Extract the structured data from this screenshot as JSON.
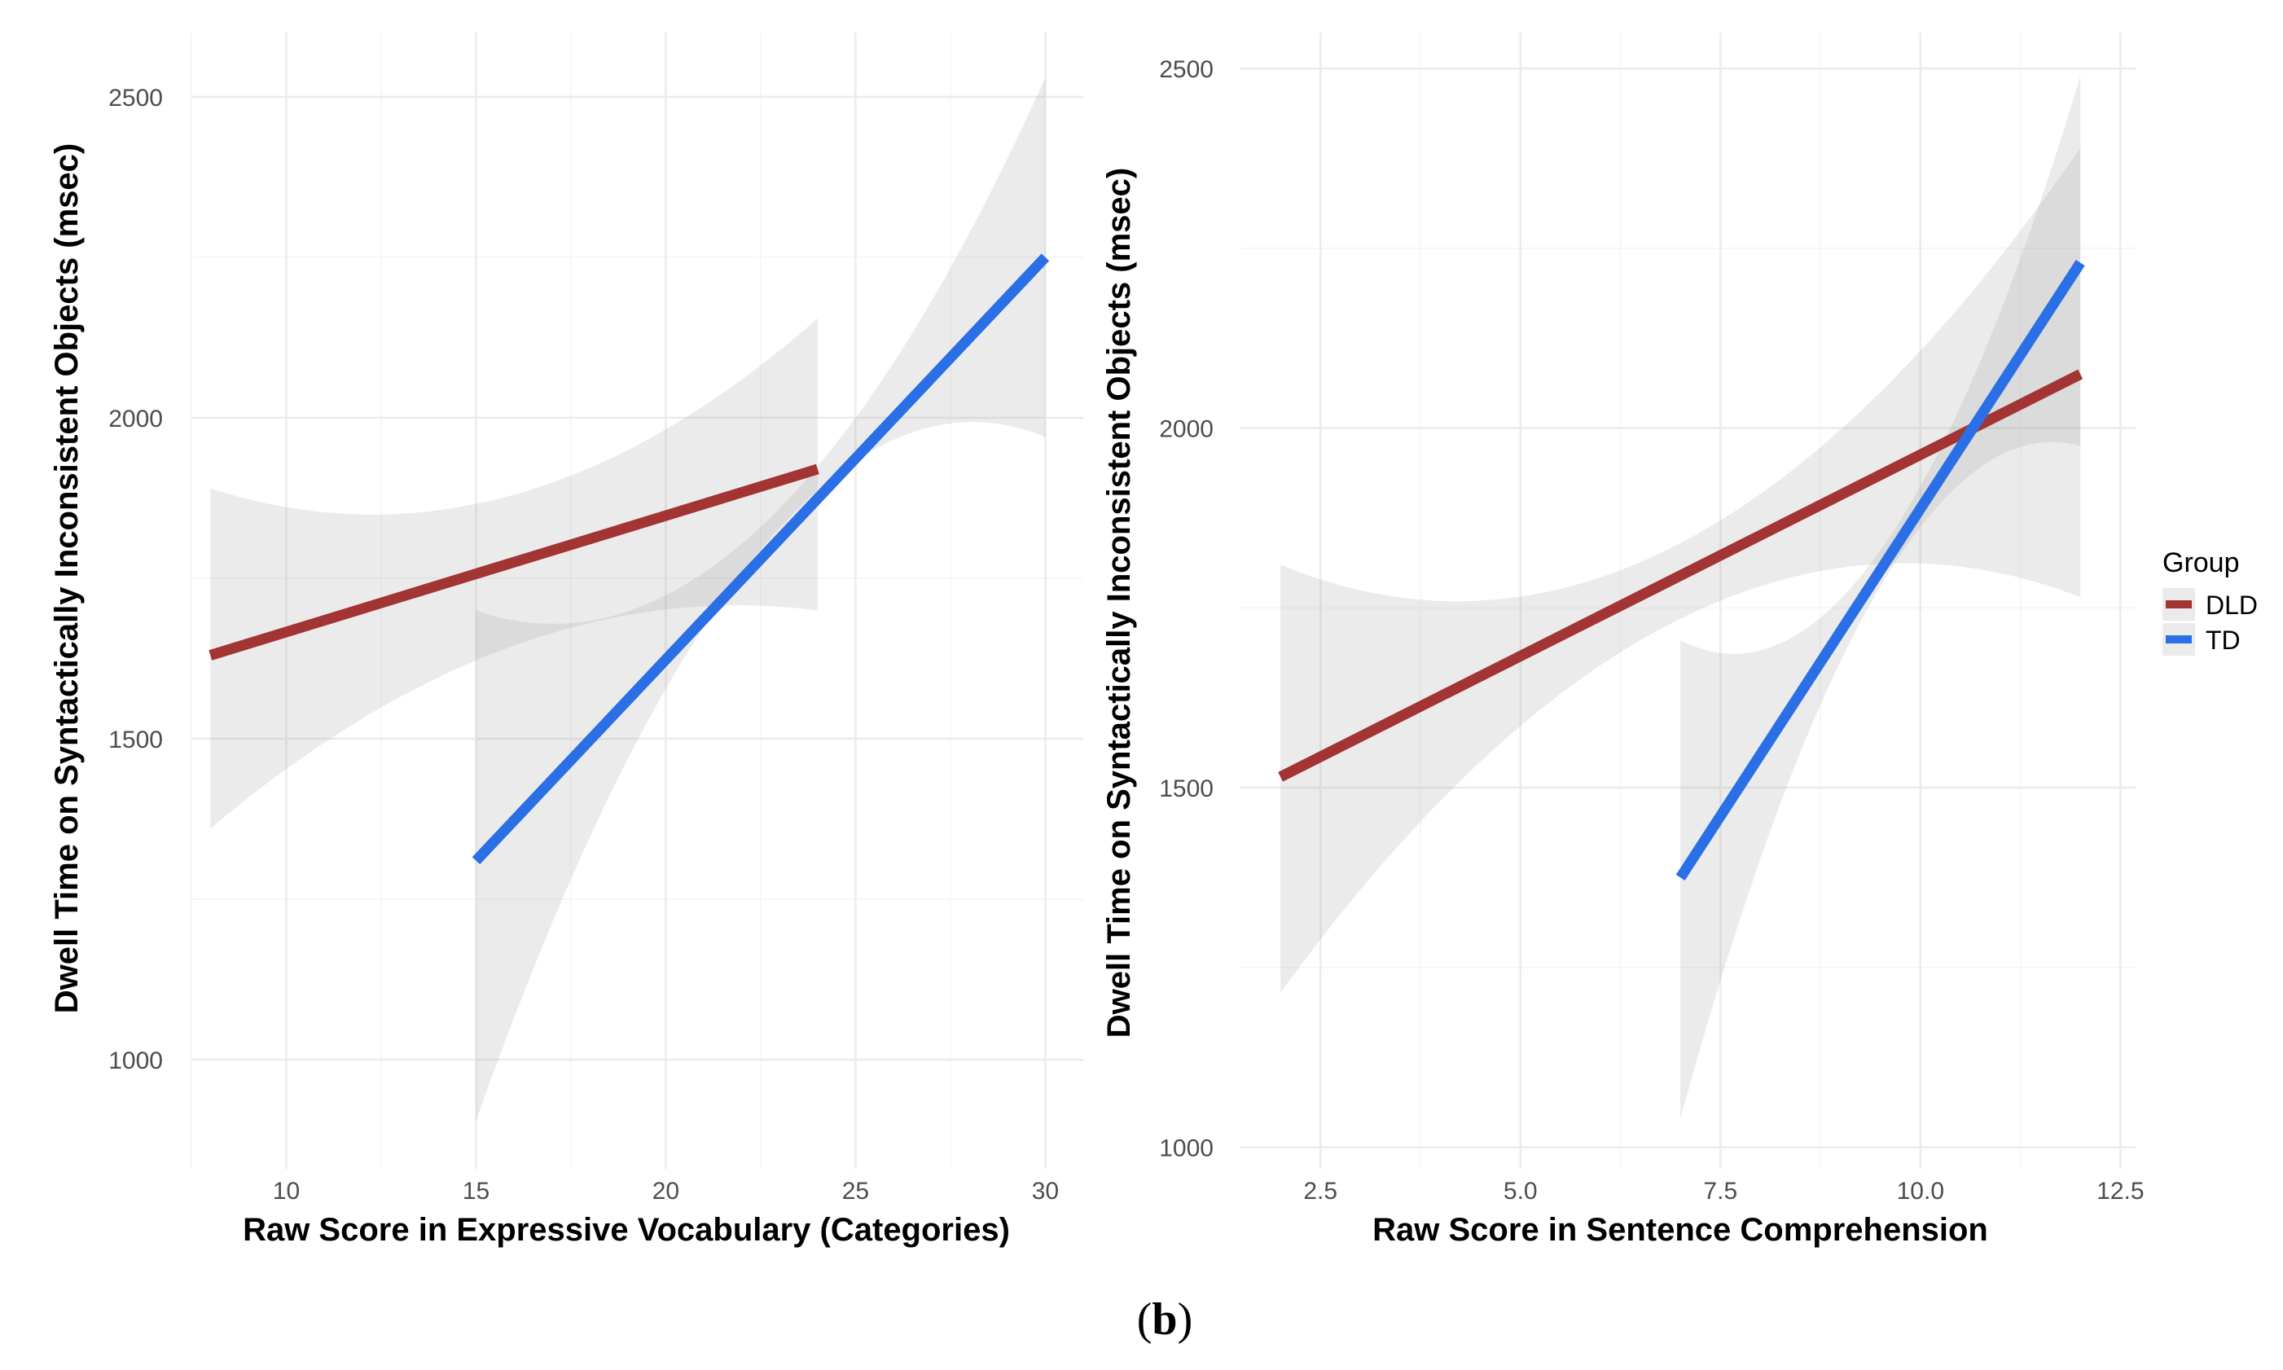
{
  "legend": {
    "title": "Group",
    "items": [
      {
        "label": "DLD",
        "color": "#A33434"
      },
      {
        "label": "TD",
        "color": "#2A6FE5"
      }
    ]
  },
  "caption": {
    "open": "(",
    "label": "b",
    "close": ")"
  },
  "chart_data": [
    {
      "type": "line",
      "title": "",
      "xlabel": "Raw Score in Expressive Vocabulary (Categories)",
      "ylabel": "Dwell Time on Syntactically Inconsistent Objects (msec)",
      "xlim": [
        7.5,
        31.0
      ],
      "ylim": [
        830,
        2600
      ],
      "x_ticks": [
        10,
        15,
        20,
        25,
        30
      ],
      "x_tick_labels": [
        "10",
        "15",
        "20",
        "25",
        "30"
      ],
      "y_ticks": [
        1000,
        1500,
        2000,
        2500
      ],
      "y_tick_labels": [
        "1000",
        "1500",
        "2000",
        "2500"
      ],
      "grid": true,
      "series": [
        {
          "name": "DLD",
          "color": "#A33434",
          "x": [
            8,
            24
          ],
          "y": [
            1630,
            1920
          ],
          "ribbon": {
            "x": [
              8,
              16,
              24
            ],
            "lower": [
              1360,
              1645,
              1700
            ],
            "upper": [
              1890,
              1880,
              2155
            ]
          }
        },
        {
          "name": "TD",
          "color": "#2A6FE5",
          "x": [
            15,
            30
          ],
          "y": [
            1310,
            2250
          ],
          "ribbon": {
            "x": [
              15,
              22.5,
              30
            ],
            "lower": [
              905,
              1795,
              1970
            ],
            "upper": [
              1700,
              1830,
              2530
            ]
          }
        }
      ]
    },
    {
      "type": "line",
      "title": "",
      "xlabel": "Raw Score in Sentence Comprehension",
      "ylabel": "Dwell Time on Syntactically Inconsistent Objects (msec)",
      "xlim": [
        1.5,
        12.7
      ],
      "ylim": [
        970,
        2550
      ],
      "x_ticks": [
        2.5,
        5.0,
        7.5,
        10.0,
        12.5
      ],
      "x_tick_labels": [
        "2.5",
        "5.0",
        "7.5",
        "10.0",
        "12.5"
      ],
      "y_ticks": [
        1000,
        1500,
        2000,
        2500
      ],
      "y_tick_labels": [
        "1000",
        "1500",
        "2000",
        "2500"
      ],
      "grid": true,
      "series": [
        {
          "name": "DLD",
          "color": "#A33434",
          "x": [
            2,
            12
          ],
          "y": [
            1515,
            2075
          ],
          "ribbon": {
            "x": [
              2,
              7,
              12
            ],
            "lower": [
              1215,
              1735,
              1765
            ],
            "upper": [
              1810,
              1840,
              2390
            ]
          }
        },
        {
          "name": "TD",
          "color": "#2A6FE5",
          "x": [
            7,
            12
          ],
          "y": [
            1375,
            2230
          ],
          "ribbon": {
            "x": [
              7,
              9.5,
              12
            ],
            "lower": [
              1040,
              1780,
              1975
            ],
            "upper": [
              1705,
              1830,
              2490
            ]
          }
        }
      ]
    }
  ]
}
